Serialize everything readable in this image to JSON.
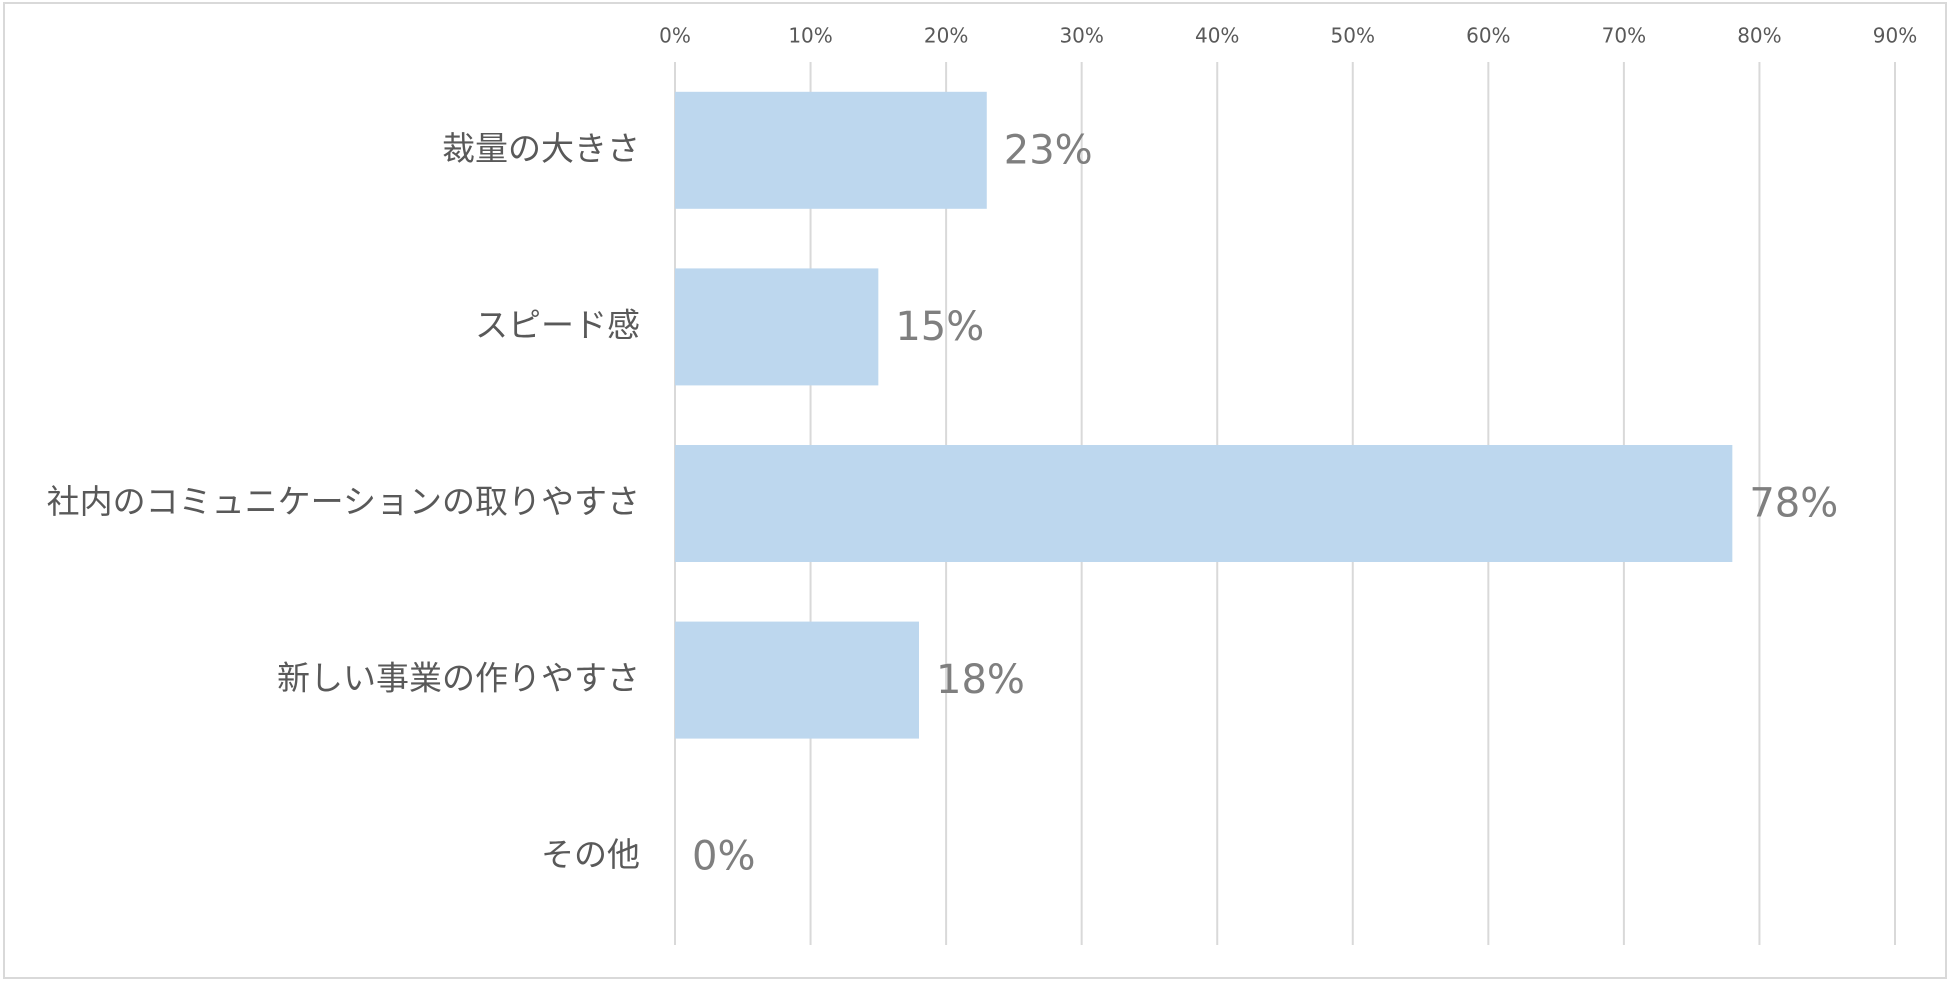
{
  "chart_data": {
    "type": "bar",
    "orientation": "horizontal",
    "categories": [
      "裁量の大きさ",
      "スピード感",
      "社内のコミュニケーションの取りやすさ",
      "新しい事業の作りやすさ",
      "その他"
    ],
    "values": [
      23,
      15,
      78,
      18,
      0
    ],
    "value_labels": [
      "23%",
      "15%",
      "78%",
      "18%",
      "0%"
    ],
    "xlim": [
      0,
      90
    ],
    "x_ticks": [
      "0%",
      "10%",
      "20%",
      "30%",
      "40%",
      "50%",
      "60%",
      "70%",
      "80%",
      "90%"
    ],
    "x_axis_position": "top",
    "grid": true,
    "legend": "none",
    "colors": {
      "bar": "#bdd7ee",
      "grid": "#d9d9d9",
      "tick_text": "#595959",
      "category_text": "#595959",
      "data_label_text": "#7f7f7f",
      "border": "#d9d9d9"
    }
  }
}
